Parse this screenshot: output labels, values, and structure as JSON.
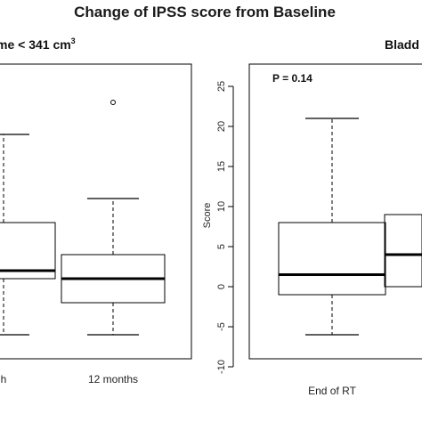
{
  "figure": {
    "title": "Change of IPSS score from Baseline"
  },
  "chart_data": [
    {
      "type": "boxplot",
      "panel_title": "me < 341 cm",
      "panel_title_superscript": "3",
      "ylabel": "",
      "ylim": [
        -10,
        27
      ],
      "categories": [
        "h",
        "12 months"
      ],
      "boxes": [
        {
          "category": "h",
          "whisker_low": -6,
          "q1": 1,
          "median": 2,
          "q3": 8,
          "whisker_high": 19,
          "outliers": []
        },
        {
          "category": "12 months",
          "whisker_low": -6,
          "q1": -2,
          "median": 1,
          "q3": 4,
          "whisker_high": 11,
          "outliers": [
            23
          ]
        }
      ]
    },
    {
      "type": "boxplot",
      "panel_title": "Bladd",
      "ylabel": "Score",
      "ylim": [
        -10,
        27
      ],
      "yticks": [
        -10,
        -5,
        0,
        5,
        10,
        15,
        20,
        25
      ],
      "annotation": "P = 0.14",
      "categories": [
        "End of RT",
        ""
      ],
      "boxes": [
        {
          "category": "End of RT",
          "whisker_low": -6,
          "q1": -1,
          "median": 1.5,
          "q3": 8,
          "whisker_high": 21,
          "outliers": []
        },
        {
          "category": "",
          "q1": 0,
          "median": 4,
          "q3": 9
        }
      ]
    }
  ]
}
